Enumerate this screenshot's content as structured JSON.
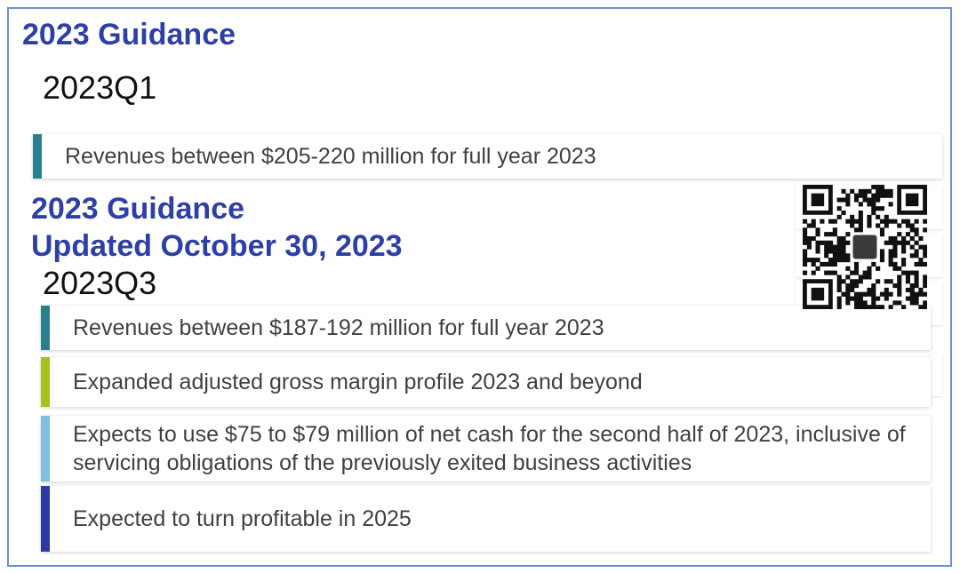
{
  "guidance_2023": {
    "title": "2023 Guidance",
    "quarter": "2023Q1",
    "items": [
      {
        "text": "Revenues between $205-220 million for full year 2023",
        "color": "#2a7f8c"
      }
    ]
  },
  "guidance_updated": {
    "title_line1": "2023 Guidance",
    "title_line2": "Updated October 30, 2023",
    "quarter": "2023Q3",
    "items": [
      {
        "text": "Revenues between $187-192 million for full year 2023",
        "color": "#2a7f8c"
      },
      {
        "text": "Expanded adjusted gross margin profile 2023 and beyond",
        "color": "#a4c41c"
      },
      {
        "text": "Expects to use $75 to $79 million of net cash for the second half of 2023, inclusive of servicing obligations of the previously exited business activities",
        "color": "#7cc0dc"
      },
      {
        "text": "Expected to turn profitable in 2025",
        "color": "#2b3aa3"
      }
    ]
  },
  "colors": {
    "heading": "#2e3fa8",
    "frame": "#6b8fd6",
    "body_text": "#404040"
  },
  "qr_icon": "qr-code-icon"
}
